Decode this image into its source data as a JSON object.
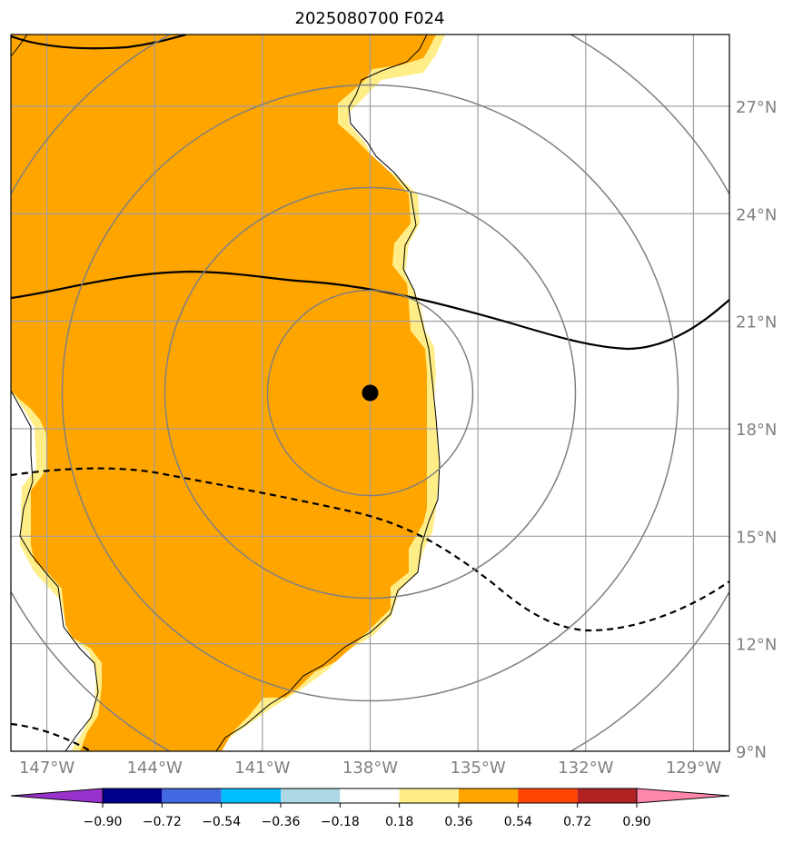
{
  "title": "2025080700 F024",
  "lon_labels": [
    "147°W",
    "144°W",
    "141°W",
    "138°W",
    "135°W",
    "132°W",
    "129°W"
  ],
  "lat_labels": [
    "9°N",
    "12°N",
    "15°N",
    "18°N",
    "21°N",
    "24°N",
    "27°N"
  ],
  "colorbar": {
    "ticks": [
      "−0.90",
      "−0.72",
      "−0.54",
      "−0.36",
      "−0.18",
      "0.18",
      "0.36",
      "0.54",
      "0.72",
      "0.90"
    ],
    "colors": [
      "#9932cc",
      "#00008b",
      "#4169e1",
      "#00bfff",
      "#add8e6",
      "#ffffff",
      "#ffee88",
      "#ffa500",
      "#ff4500",
      "#b22222",
      "#ff88aa"
    ]
  },
  "map": {
    "extent": {
      "lon_west": -148,
      "lon_east": -128,
      "lat_south": 9,
      "lat_north": 29
    },
    "center": {
      "lon": -138,
      "lat": 19
    },
    "fill_colors": {
      "main": "#ffa500",
      "fringe": "#ffee88"
    },
    "line_colors": {
      "grid": "#a0a0a0",
      "rings": "#808080",
      "contours": "#000000"
    }
  }
}
